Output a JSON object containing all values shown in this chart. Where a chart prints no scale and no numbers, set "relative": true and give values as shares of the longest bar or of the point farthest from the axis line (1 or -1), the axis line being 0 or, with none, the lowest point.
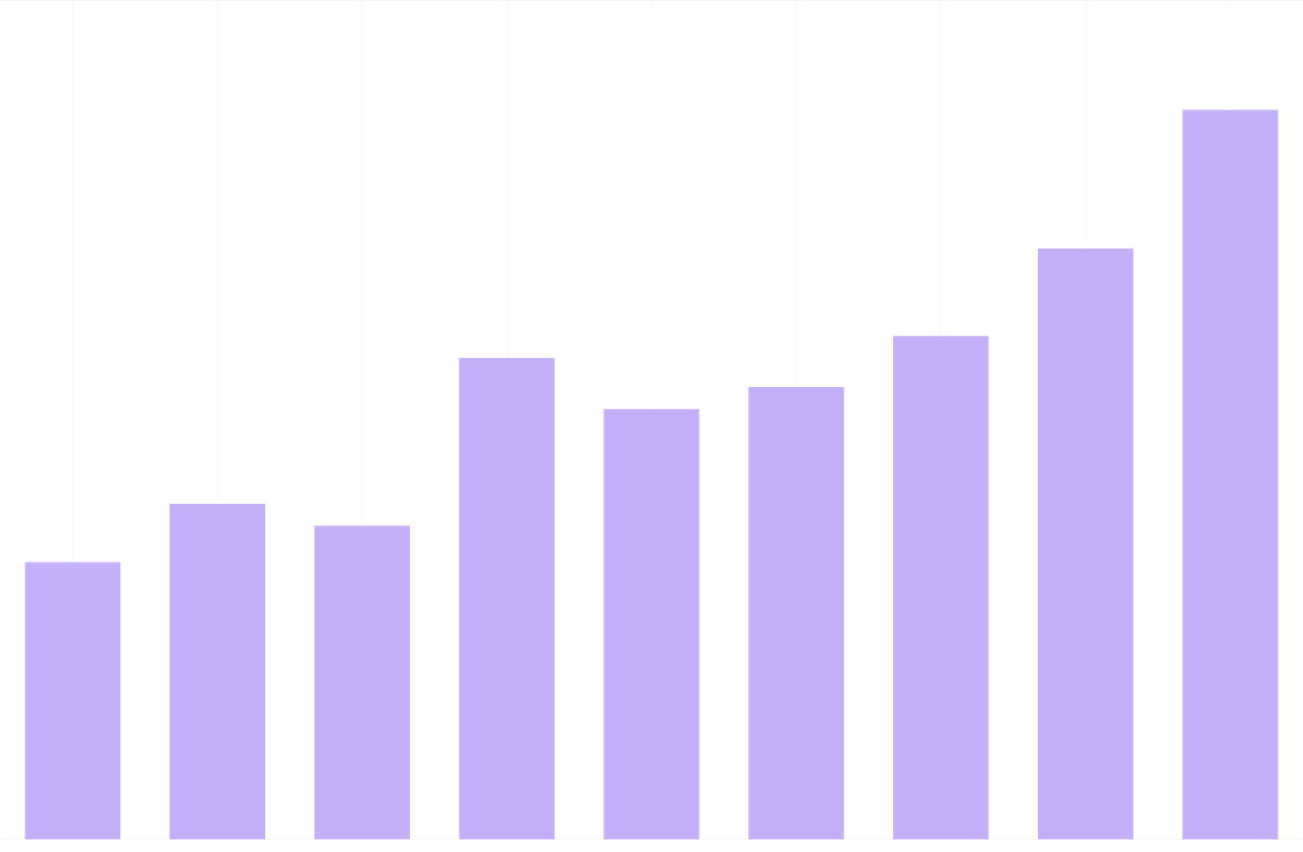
{
  "chart_data": {
    "type": "bar",
    "relative": true,
    "categories": [
      null,
      null,
      null,
      null,
      null,
      null,
      null,
      null,
      null
    ],
    "values": [
      0.38,
      0.46,
      0.43,
      0.66,
      0.59,
      0.62,
      0.69,
      0.81,
      1
    ],
    "color": "#c4b0f8",
    "grid": true
  }
}
